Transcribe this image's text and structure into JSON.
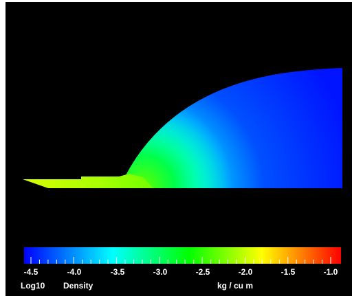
{
  "colorbar": {
    "ticks": [
      "-4.5",
      "-4.0",
      "-3.5",
      "-3.0",
      "-2.5",
      "-2.0",
      "-1.5",
      "-1.0"
    ],
    "log_label": "Log10",
    "quantity_label": "Density",
    "units_label": "kg / cu m",
    "colors": [
      "#0000ff",
      "#00ffff",
      "#00ff00",
      "#ffff00",
      "#ff0000"
    ]
  }
}
